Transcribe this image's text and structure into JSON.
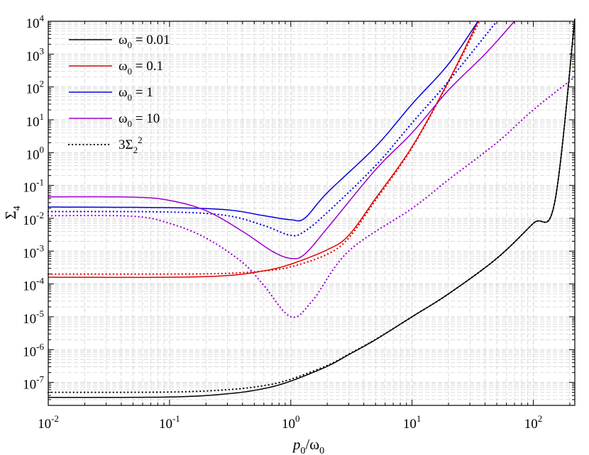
{
  "chart_data": {
    "type": "line",
    "title": "",
    "xlabel": {
      "base": "p",
      "base_sub": "0",
      "sep": "/",
      "den": "ω",
      "den_sub": "0"
    },
    "ylabel": {
      "base": "Σ",
      "sub": "4"
    },
    "x_scale": "log",
    "y_scale": "log",
    "xlim": [
      0.01,
      220
    ],
    "ylim": [
      2e-08,
      10000
    ],
    "x_ticks": [
      {
        "value": 0.01,
        "base": "10",
        "exp": "-2"
      },
      {
        "value": 0.1,
        "base": "10",
        "exp": "-1"
      },
      {
        "value": 1,
        "base": "10",
        "exp": "0"
      },
      {
        "value": 10,
        "base": "10",
        "exp": "1"
      },
      {
        "value": 100,
        "base": "10",
        "exp": "2"
      }
    ],
    "y_ticks": [
      {
        "value": 1e-07,
        "base": "10",
        "exp": "-7"
      },
      {
        "value": 1e-06,
        "base": "10",
        "exp": "-6"
      },
      {
        "value": 1e-05,
        "base": "10",
        "exp": "-5"
      },
      {
        "value": 0.0001,
        "base": "10",
        "exp": "-4"
      },
      {
        "value": 0.001,
        "base": "10",
        "exp": "-3"
      },
      {
        "value": 0.01,
        "base": "10",
        "exp": "-2"
      },
      {
        "value": 0.1,
        "base": "10",
        "exp": "-1"
      },
      {
        "value": 1,
        "base": "10",
        "exp": "0"
      },
      {
        "value": 10,
        "base": "10",
        "exp": "1"
      },
      {
        "value": 100,
        "base": "10",
        "exp": "2"
      },
      {
        "value": 1000,
        "base": "10",
        "exp": "3"
      },
      {
        "value": 10000,
        "base": "10",
        "exp": "4"
      }
    ],
    "grid": true,
    "legend_position": "top-left",
    "legend": [
      {
        "style": "solid",
        "color": "#000000",
        "prefix": "ω",
        "sub": "0",
        "suffix": " = 0.01"
      },
      {
        "style": "solid",
        "color": "#e00000",
        "prefix": "ω",
        "sub": "0",
        "suffix": " = 0.1"
      },
      {
        "style": "solid",
        "color": "#0000e0",
        "prefix": "ω",
        "sub": "0",
        "suffix": " = 1"
      },
      {
        "style": "solid",
        "color": "#9a00cc",
        "prefix": "ω",
        "sub": "0",
        "suffix": " = 10"
      },
      {
        "style": "dotted",
        "color": "#000000",
        "prefix": "3Σ",
        "sub": "2",
        "sup": "2",
        "suffix": ""
      }
    ],
    "series": [
      {
        "name": "ω0 = 0.01",
        "style": "solid",
        "color": "#000000",
        "points": [
          [
            0.01,
            3.5e-08
          ],
          [
            0.1,
            3.6e-08
          ],
          [
            0.3,
            4.5e-08
          ],
          [
            0.6,
            6.5e-08
          ],
          [
            1,
            1.1e-07
          ],
          [
            2,
            3.1e-07
          ],
          [
            3,
            7e-07
          ],
          [
            5,
            2e-06
          ],
          [
            10,
            1e-05
          ],
          [
            20,
            5e-05
          ],
          [
            50,
            0.0006
          ],
          [
            100,
            0.007
          ],
          [
            150,
            0.03
          ],
          [
            220,
            12000.0
          ]
        ]
      },
      {
        "name": "ω0 = 0.01 (3Σ2²)",
        "style": "dotted",
        "color": "#000000",
        "points": [
          [
            0.01,
            5e-08
          ],
          [
            0.1,
            5.1e-08
          ],
          [
            0.3,
            6e-08
          ],
          [
            0.6,
            8e-08
          ],
          [
            1,
            1.25e-07
          ],
          [
            2,
            3.3e-07
          ],
          [
            3,
            7.2e-07
          ],
          [
            5,
            2.05e-06
          ],
          [
            10,
            1e-05
          ],
          [
            20,
            5e-05
          ],
          [
            50,
            0.0006
          ],
          [
            100,
            0.007
          ],
          [
            150,
            0.03
          ],
          [
            220,
            12000.0
          ]
        ]
      },
      {
        "name": "ω0 = 0.1",
        "style": "solid",
        "color": "#e00000",
        "points": [
          [
            0.01,
            0.00016
          ],
          [
            0.1,
            0.00016
          ],
          [
            0.3,
            0.00018
          ],
          [
            0.6,
            0.00025
          ],
          [
            1,
            0.0004
          ],
          [
            2,
            0.0011
          ],
          [
            3,
            0.003
          ],
          [
            5,
            0.04
          ],
          [
            10,
            1.5
          ],
          [
            20,
            150
          ],
          [
            35,
            10000.0
          ]
        ]
      },
      {
        "name": "ω0 = 0.1 (3Σ2²)",
        "style": "dotted",
        "color": "#e00000",
        "points": [
          [
            0.01,
            0.0002
          ],
          [
            0.1,
            0.0002
          ],
          [
            0.3,
            0.00021
          ],
          [
            0.6,
            0.00025
          ],
          [
            1,
            0.00033
          ],
          [
            2,
            0.0008
          ],
          [
            3,
            0.0025
          ],
          [
            5,
            0.035
          ],
          [
            10,
            1.4
          ],
          [
            20,
            140
          ],
          [
            36,
            10000.0
          ]
        ]
      },
      {
        "name": "ω0 = 1",
        "style": "solid",
        "color": "#0000e0",
        "points": [
          [
            0.01,
            0.022
          ],
          [
            0.1,
            0.021
          ],
          [
            0.3,
            0.018
          ],
          [
            0.6,
            0.012
          ],
          [
            1,
            0.009
          ],
          [
            1.3,
            0.01
          ],
          [
            2,
            0.06
          ],
          [
            5,
            1.5
          ],
          [
            10,
            30
          ],
          [
            20,
            500
          ],
          [
            35,
            10000.0
          ]
        ]
      },
      {
        "name": "ω0 = 1 (3Σ2²)",
        "style": "dotted",
        "color": "#0000e0",
        "points": [
          [
            0.01,
            0.016
          ],
          [
            0.1,
            0.0155
          ],
          [
            0.3,
            0.012
          ],
          [
            0.6,
            0.006
          ],
          [
            1,
            0.003
          ],
          [
            1.3,
            0.004
          ],
          [
            2,
            0.015
          ],
          [
            5,
            0.4
          ],
          [
            10,
            8
          ],
          [
            20,
            150
          ],
          [
            50,
            10000.0
          ]
        ]
      },
      {
        "name": "ω0 = 10",
        "style": "solid",
        "color": "#9a00cc",
        "points": [
          [
            0.01,
            0.045
          ],
          [
            0.05,
            0.044
          ],
          [
            0.1,
            0.035
          ],
          [
            0.2,
            0.017
          ],
          [
            0.4,
            0.004
          ],
          [
            0.7,
            0.001
          ],
          [
            1,
            0.0006
          ],
          [
            1.3,
            0.0008
          ],
          [
            2,
            0.005
          ],
          [
            5,
            0.3
          ],
          [
            10,
            4
          ],
          [
            20,
            80
          ],
          [
            40,
            1000.0
          ],
          [
            70,
            10000.0
          ]
        ]
      },
      {
        "name": "ω0 = 10 (3Σ2²)",
        "style": "dotted",
        "color": "#9a00cc",
        "points": [
          [
            0.01,
            0.012
          ],
          [
            0.05,
            0.0115
          ],
          [
            0.1,
            0.007
          ],
          [
            0.2,
            0.0025
          ],
          [
            0.4,
            0.00045
          ],
          [
            0.6,
            9e-05
          ],
          [
            1,
            1e-05
          ],
          [
            1.5,
            3e-05
          ],
          [
            3,
            0.001
          ],
          [
            10,
            0.02
          ],
          [
            20,
            0.15
          ],
          [
            50,
            2
          ],
          [
            100,
            20
          ],
          [
            220,
            200
          ]
        ]
      }
    ]
  }
}
